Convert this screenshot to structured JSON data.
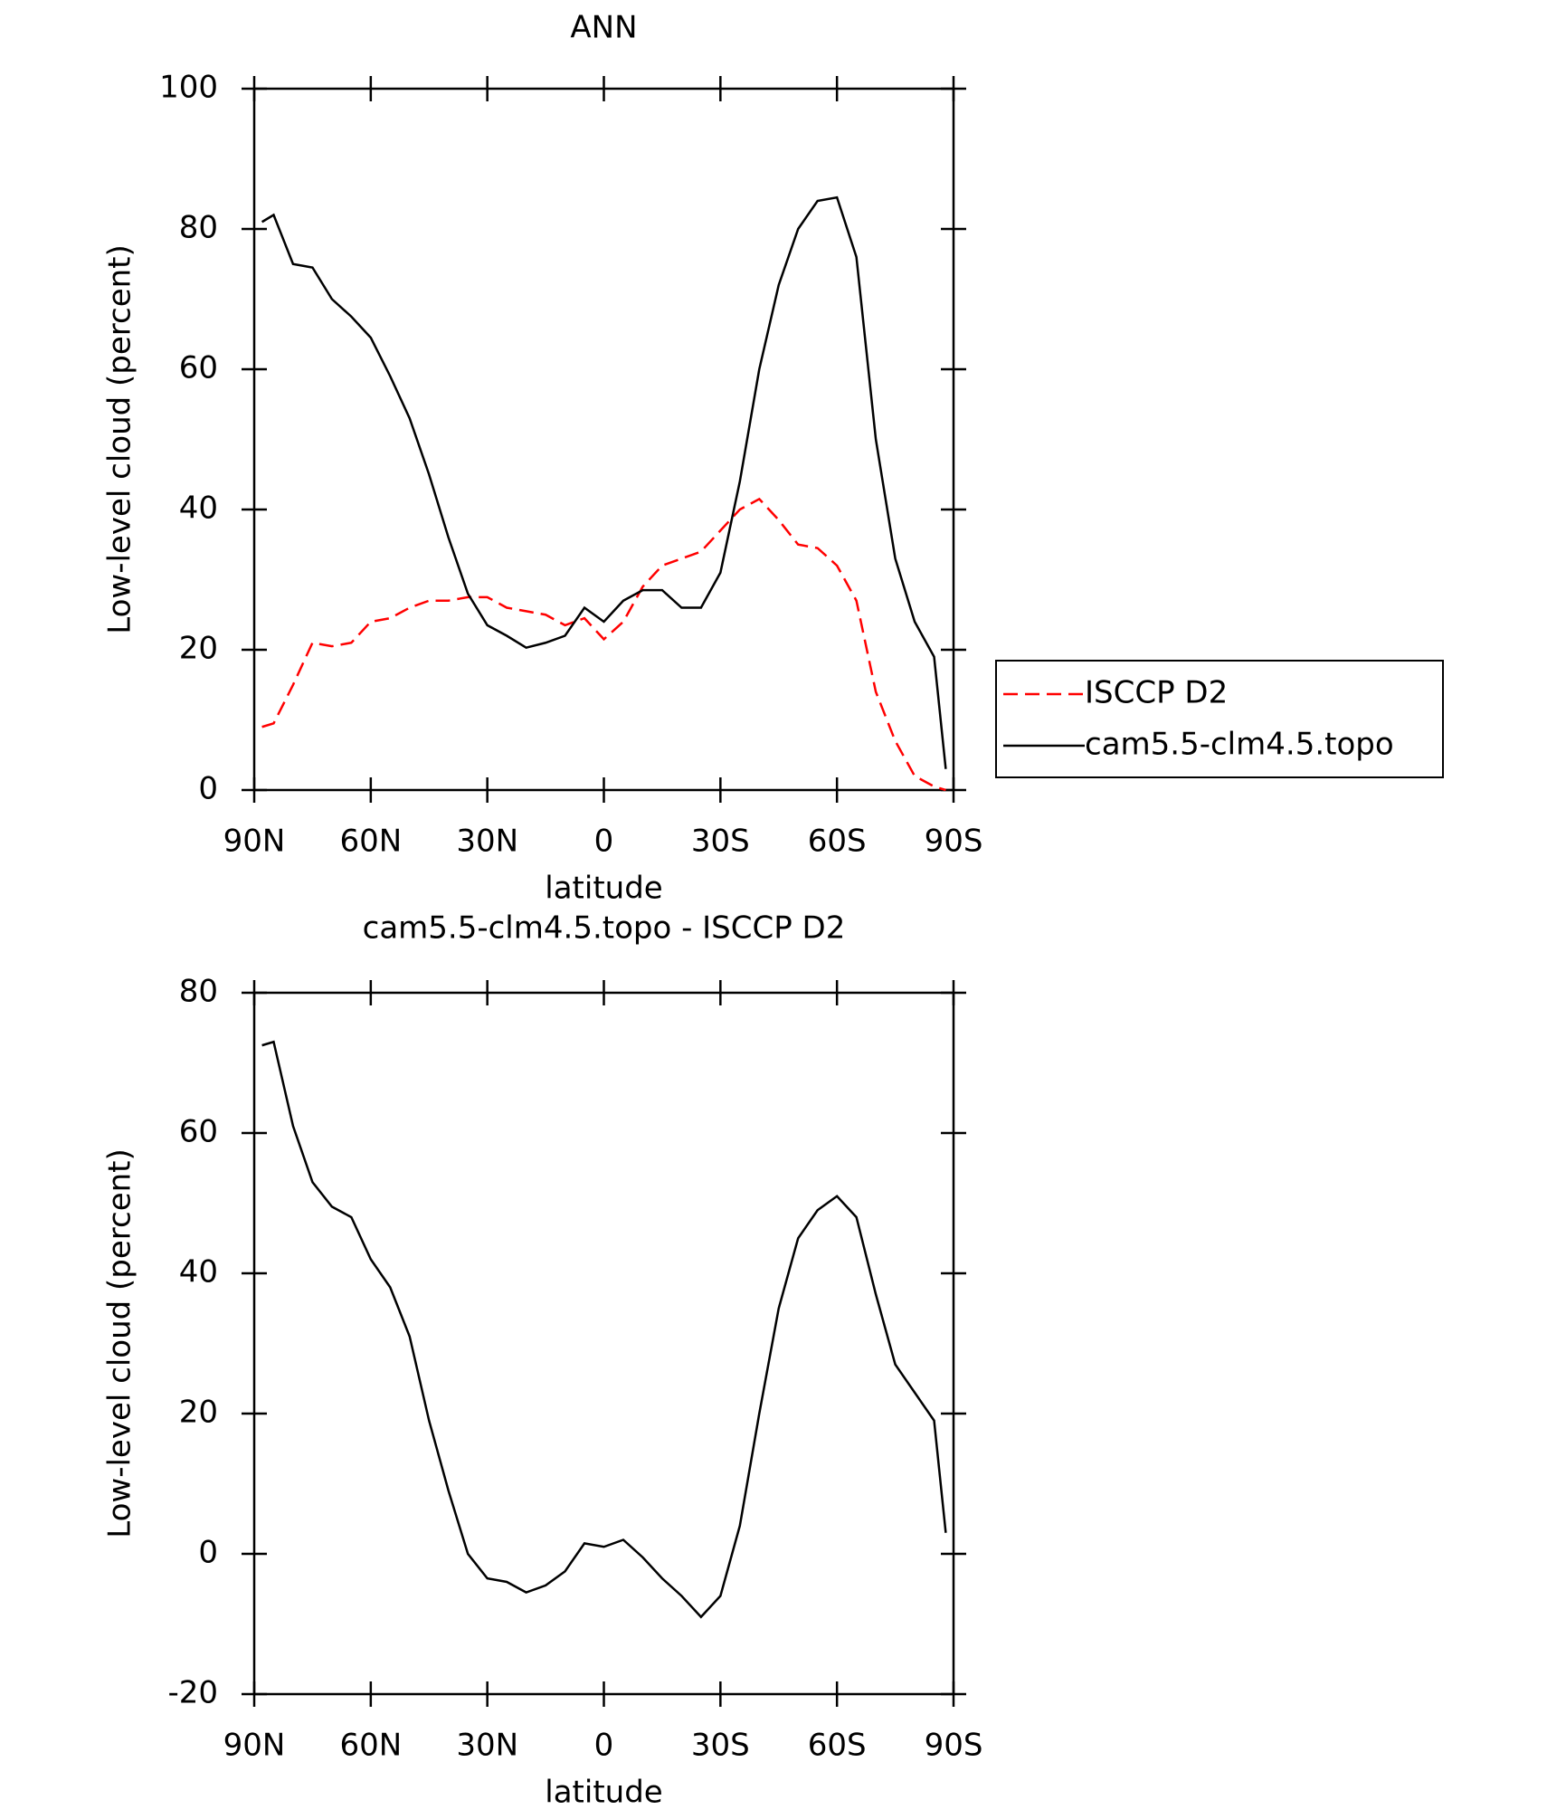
{
  "chart_data": [
    {
      "type": "line",
      "title": "ANN",
      "xlabel": "latitude",
      "ylabel": "Low-level cloud (percent)",
      "x": [
        88,
        85,
        80,
        75,
        70,
        65,
        60,
        55,
        50,
        45,
        40,
        35,
        30,
        25,
        20,
        15,
        10,
        5,
        0,
        -5,
        -10,
        -15,
        -20,
        -25,
        -30,
        -35,
        -40,
        -45,
        -50,
        -55,
        -60,
        -65,
        -70,
        -75,
        -80,
        -85,
        -88
      ],
      "series": [
        {
          "name": "ISCCP D2",
          "color": "#ff0000",
          "linestyle": "dashed",
          "values": [
            9,
            9.5,
            15,
            21,
            20.5,
            21,
            24,
            24.5,
            26,
            27,
            27,
            27.5,
            27.5,
            26,
            25.5,
            25,
            23.5,
            24.5,
            21.5,
            24,
            29,
            32,
            33,
            34,
            37,
            40,
            41.5,
            38.5,
            35,
            34.5,
            32,
            27,
            14,
            7,
            2,
            0.5,
            0
          ]
        },
        {
          "name": "cam5.5-clm4.5.topo",
          "color": "#000000",
          "linestyle": "solid",
          "values": [
            81,
            82,
            75,
            74.5,
            70,
            67.5,
            64.5,
            59,
            53,
            45,
            36,
            28,
            23.5,
            22,
            20.3,
            21,
            22,
            26,
            24,
            27,
            28.5,
            28.5,
            26,
            26,
            31,
            44,
            60,
            72,
            80,
            84,
            84.5,
            76,
            50,
            33,
            24,
            19,
            3
          ]
        }
      ],
      "xlim": [
        90,
        -90
      ],
      "xticks": [
        {
          "value": 90,
          "label": "90N"
        },
        {
          "value": 60,
          "label": "60N"
        },
        {
          "value": 30,
          "label": "30N"
        },
        0,
        {
          "value": -30,
          "label": "30S"
        },
        {
          "value": -60,
          "label": "60S"
        },
        {
          "value": -90,
          "label": "90S"
        }
      ],
      "ylim": [
        0,
        100
      ],
      "yticks": [
        0,
        20,
        40,
        60,
        80,
        100
      ],
      "legend": "right"
    },
    {
      "type": "line",
      "title": "cam5.5-clm4.5.topo - ISCCP D2",
      "xlabel": "latitude",
      "ylabel": "Low-level cloud (percent)",
      "x": [
        88,
        85,
        80,
        75,
        70,
        65,
        60,
        55,
        50,
        45,
        40,
        35,
        30,
        25,
        20,
        15,
        10,
        5,
        0,
        -5,
        -10,
        -15,
        -20,
        -25,
        -30,
        -35,
        -40,
        -45,
        -50,
        -55,
        -60,
        -65,
        -70,
        -75,
        -80,
        -85,
        -88
      ],
      "series": [
        {
          "color": "#000000",
          "linestyle": "solid",
          "values": [
            72.5,
            73,
            61,
            53,
            49.5,
            48,
            42,
            38,
            31,
            19,
            9,
            0,
            -3.5,
            -4,
            -5.5,
            -4.5,
            -2.5,
            1.5,
            1,
            2,
            -0.5,
            -3.5,
            -6,
            -9,
            -6,
            4,
            20,
            35,
            45,
            49,
            51,
            48,
            37,
            27,
            23,
            19,
            3
          ]
        }
      ],
      "xlim": [
        90,
        -90
      ],
      "xticks": [
        {
          "value": 90,
          "label": "90N"
        },
        {
          "value": 60,
          "label": "60N"
        },
        {
          "value": 30,
          "label": "30N"
        },
        0,
        {
          "value": -30,
          "label": "30S"
        },
        {
          "value": -60,
          "label": "60S"
        },
        {
          "value": -90,
          "label": "90S"
        }
      ],
      "ylim": [
        -20,
        80
      ],
      "yticks": [
        -20,
        0,
        20,
        40,
        60,
        80
      ]
    }
  ]
}
